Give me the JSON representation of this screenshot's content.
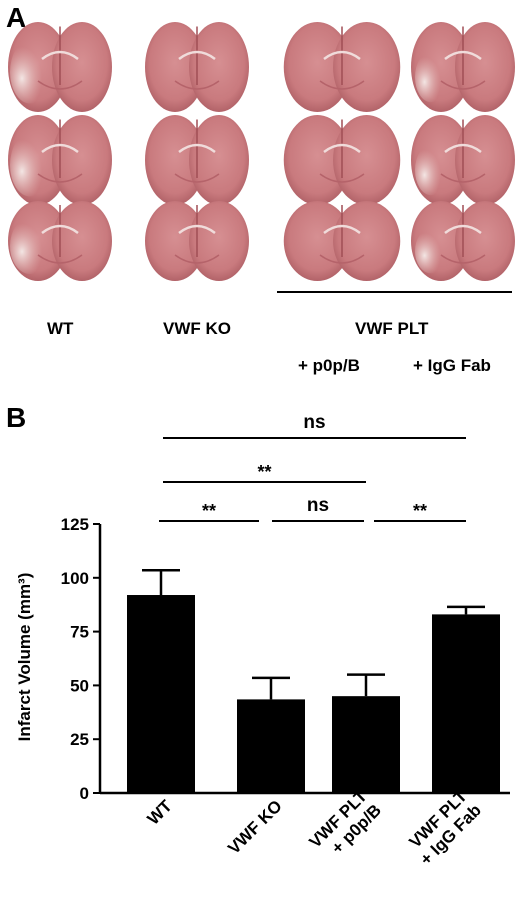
{
  "panel_a": {
    "letter": "A",
    "labels": {
      "wt": "WT",
      "vwf_ko": "VWF KO",
      "vwf_plt": "VWF PLT",
      "p0p_b": "+ p0p/B",
      "igg_fab": "+ IgG Fab"
    },
    "colors": {
      "tissue": "#c97a7e",
      "tissue_dark": "#b25d63",
      "pale": "#f2e4e3"
    }
  },
  "panel_b": {
    "letter": "B"
  },
  "chart_data": {
    "type": "bar",
    "categories": [
      "WT",
      "VWF KO",
      "VWF PLT\n+ p0p/B",
      "VWF PLT\n+ IgG Fab"
    ],
    "values": [
      92,
      43.5,
      45,
      83
    ],
    "errors": [
      11.5,
      10,
      10,
      3.5
    ],
    "ylabel": "Infarct Volume (mm³)",
    "ylim": [
      0,
      125
    ],
    "yticks": [
      0,
      25,
      50,
      75,
      100,
      125
    ],
    "bar_color": "#000000",
    "significance": [
      {
        "from": 0,
        "to": 3,
        "label": "ns"
      },
      {
        "from": 0,
        "to": 2,
        "label": "**"
      },
      {
        "from": 0,
        "to": 1,
        "label": "**"
      },
      {
        "from": 1,
        "to": 2,
        "label": "ns"
      },
      {
        "from": 2,
        "to": 3,
        "label": "**"
      }
    ]
  }
}
